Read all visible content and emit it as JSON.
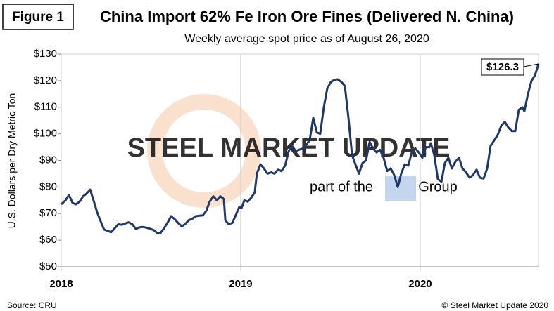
{
  "chart_data": {
    "type": "line",
    "figure_label": "Figure 1",
    "title": "China Import 62% Fe Iron Ore Fines (Delivered N. China)",
    "subtitle": "Weekly average spot price as of August 26, 2020",
    "y_label": "U.S. Dollars per Dry Metric Ton",
    "source": "Source: CRU",
    "copyright": "© Steel Market Update 2020",
    "watermark": {
      "brand": "STEEL MARKET UPDATE",
      "part": "part of the",
      "group": "Group"
    },
    "annotation": "$126.3",
    "color": "#1f3868",
    "xlim": [
      2018,
      2020.659
    ],
    "xticks": [
      2018,
      2019,
      2020
    ],
    "ylim": [
      50,
      130
    ],
    "yticks": [
      {
        "value": 50,
        "label": "$50"
      },
      {
        "value": 60,
        "label": "$60"
      },
      {
        "value": 70,
        "label": "$70"
      },
      {
        "value": 80,
        "label": "$80"
      },
      {
        "value": 90,
        "label": "$90"
      },
      {
        "value": 100,
        "label": "$100"
      },
      {
        "value": 110,
        "label": "$110"
      },
      {
        "value": 120,
        "label": "$120"
      },
      {
        "value": 130,
        "label": "$130"
      }
    ],
    "x": [
      2018.0,
      2018.024,
      2018.043,
      2018.063,
      2018.082,
      2018.102,
      2018.122,
      2018.141,
      2018.161,
      2018.18,
      2018.2,
      2018.22,
      2018.239,
      2018.259,
      2018.278,
      2018.298,
      2018.318,
      2018.337,
      2018.357,
      2018.376,
      2018.396,
      2018.416,
      2018.435,
      2018.455,
      2018.475,
      2018.494,
      2018.514,
      2018.533,
      2018.553,
      2018.573,
      2018.592,
      2018.612,
      2018.631,
      2018.651,
      2018.671,
      2018.69,
      2018.71,
      2018.729,
      2018.749,
      2018.769,
      2018.788,
      2018.808,
      2018.827,
      2018.847,
      2018.867,
      2018.886,
      2018.906,
      2018.914,
      2018.933,
      2018.953,
      2018.973,
      2018.992,
      2019.004,
      2019.02,
      2019.039,
      2019.059,
      2019.078,
      2019.09,
      2019.11,
      2019.129,
      2019.149,
      2019.169,
      2019.188,
      2019.208,
      2019.227,
      2019.247,
      2019.267,
      2019.286,
      2019.306,
      2019.325,
      2019.345,
      2019.365,
      2019.384,
      2019.404,
      2019.424,
      2019.443,
      2019.463,
      2019.482,
      2019.502,
      2019.522,
      2019.541,
      2019.561,
      2019.58,
      2019.6,
      2019.62,
      2019.639,
      2019.659,
      2019.678,
      2019.698,
      2019.718,
      2019.737,
      2019.757,
      2019.776,
      2019.796,
      2019.816,
      2019.835,
      2019.855,
      2019.875,
      2019.894,
      2019.914,
      2019.933,
      2019.953,
      2019.973,
      2019.992,
      2020.012,
      2020.031,
      2020.051,
      2020.059,
      2020.078,
      2020.098,
      2020.118,
      2020.137,
      2020.157,
      2020.176,
      2020.196,
      2020.216,
      2020.235,
      2020.255,
      2020.275,
      2020.294,
      2020.314,
      2020.333,
      2020.353,
      2020.373,
      2020.392,
      2020.412,
      2020.431,
      2020.451,
      2020.471,
      2020.49,
      2020.51,
      2020.529,
      2020.549,
      2020.569,
      2020.58,
      2020.6,
      2020.62,
      2020.639,
      2020.659
    ],
    "values": [
      73.5,
      75,
      77,
      74,
      73.5,
      74.5,
      76.5,
      77.5,
      79,
      75,
      70.5,
      67,
      64,
      63.5,
      63,
      64.5,
      66,
      65.8,
      66.3,
      66.7,
      66,
      64.2,
      64.8,
      65,
      64.7,
      64.3,
      63.8,
      62.8,
      62.7,
      64.5,
      66.5,
      69,
      68,
      66.5,
      65.2,
      66,
      67.5,
      68,
      69,
      69.2,
      69.3,
      71,
      74.5,
      76.5,
      75,
      76.5,
      75.5,
      67.5,
      66,
      66.5,
      69.5,
      72.5,
      72,
      75,
      74.5,
      76,
      78,
      85,
      88.5,
      87,
      85,
      85.5,
      85,
      86.5,
      86,
      88,
      93.5,
      95.5,
      93.5,
      94,
      94.5,
      96,
      97.5,
      106,
      100.5,
      100,
      110,
      117,
      119.5,
      120.3,
      120.5,
      119.5,
      118,
      106,
      92,
      88.5,
      85,
      89,
      90,
      97,
      94.5,
      93,
      94,
      91,
      86,
      87,
      84.5,
      80,
      85,
      88.5,
      88,
      93,
      94.5,
      93,
      91,
      95,
      95,
      96.5,
      92,
      83,
      82,
      89,
      91,
      87,
      89.5,
      91,
      87,
      85.5,
      83.5,
      84.5,
      86.5,
      83.5,
      83.2,
      87,
      95.5,
      97.5,
      99.5,
      103,
      104.5,
      102.5,
      101,
      101,
      109,
      110,
      108.5,
      115,
      120,
      122,
      126.3
    ]
  }
}
